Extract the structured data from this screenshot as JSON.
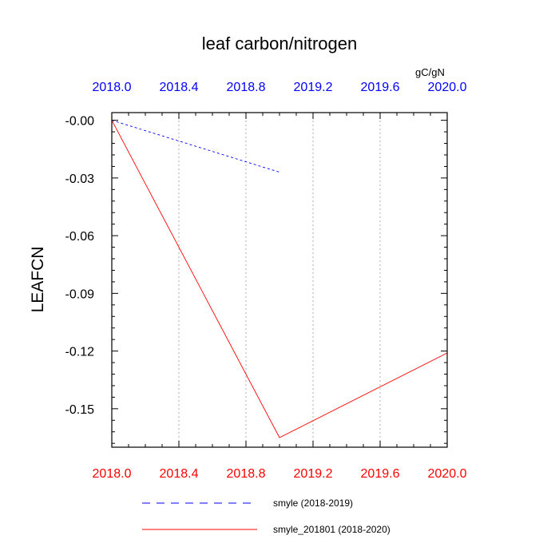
{
  "chart_data": {
    "type": "line",
    "title": "leaf carbon/nitrogen",
    "units": "gC/gN",
    "ylabel": "LEAFCN",
    "xlim": [
      2018.0,
      2020.0
    ],
    "ylim": [
      -0.17,
      0.004
    ],
    "x_ticks": [
      "2018.0",
      "2018.4",
      "2018.8",
      "2019.2",
      "2019.6",
      "2020.0"
    ],
    "x_tick_values": [
      2018.0,
      2018.4,
      2018.8,
      2019.2,
      2019.6,
      2020.0
    ],
    "y_ticks": [
      "-0.00",
      "-0.03",
      "-0.06",
      "-0.09",
      "-0.12",
      "-0.15"
    ],
    "y_tick_values": [
      0.0,
      -0.03,
      -0.06,
      -0.09,
      -0.12,
      -0.15
    ],
    "top_axis_color": "#0000ff",
    "bottom_axis_color": "#ff0000",
    "grid": "vertical dotted",
    "series": [
      {
        "name": "smyle (2018-2019)",
        "color": "#0000ff",
        "dash": "dashed",
        "x": [
          2018.0,
          2019.0
        ],
        "y": [
          0.0,
          -0.027
        ]
      },
      {
        "name": "smyle_201801 (2018-2020)",
        "color": "#ff0000",
        "dash": "solid",
        "x": [
          2018.0,
          2019.0,
          2020.0
        ],
        "y": [
          0.0,
          -0.165,
          -0.121
        ]
      }
    ],
    "legend_position": "bottom-center"
  }
}
